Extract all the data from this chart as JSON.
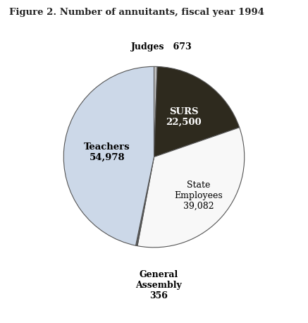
{
  "title": "Figure 2. Number of annuitants, fiscal year 1994",
  "slices": [
    {
      "label": "Judges",
      "value": 673,
      "color": "#c0c0c0",
      "text_color": "#000000"
    },
    {
      "label": "SURS",
      "value": 22500,
      "color": "#2e2a1e",
      "text_color": "#ffffff"
    },
    {
      "label": "State Employees",
      "value": 39082,
      "color": "#f8f8f8",
      "text_color": "#000000"
    },
    {
      "label": "General Assembly",
      "value": 356,
      "color": "#555555",
      "text_color": "#000000"
    },
    {
      "label": "Teachers",
      "value": 54978,
      "color": "#ccd8e8",
      "text_color": "#000000"
    }
  ],
  "edge_color": "#555555",
  "background_color": "#ffffff",
  "title_fontsize": 9.5,
  "label_fontsize": 9.0
}
